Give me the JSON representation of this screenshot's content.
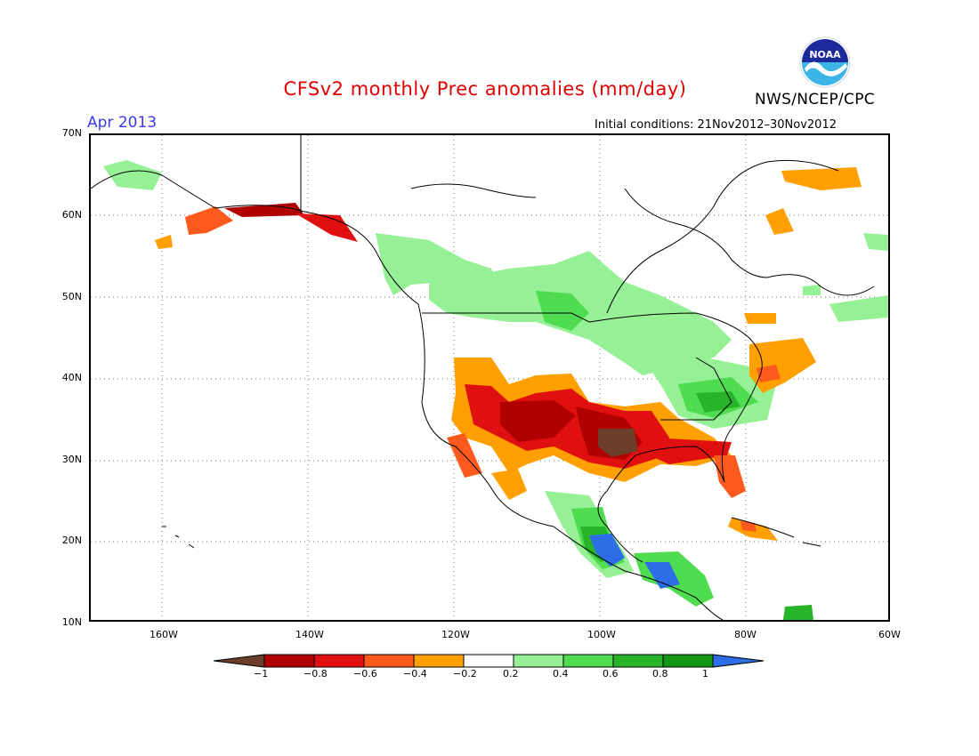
{
  "title": "CFSv2 monthly Prec anomalies (mm/day)",
  "month_label": "Apr 2013",
  "agency": "NWS/NCEP/CPC",
  "initial_conditions": "Initial conditions: 21Nov2012–30Nov2012",
  "logo_text": "NOAA",
  "lat_labels": [
    "70N",
    "60N",
    "50N",
    "40N",
    "30N",
    "20N",
    "10N"
  ],
  "lon_labels": [
    "160W",
    "140W",
    "120W",
    "100W",
    "80W",
    "60W"
  ],
  "colorbar": {
    "labels": [
      "−1",
      "−0.8",
      "−0.6",
      "−0.4",
      "−0.2",
      "0.2",
      "0.4",
      "0.6",
      "0.8",
      "1"
    ],
    "colors": [
      "#6b3f2a",
      "#b00000",
      "#e01010",
      "#ff5a1e",
      "#ffa000",
      "#ffffff",
      "#96f096",
      "#50dc50",
      "#28b428",
      "#149614",
      "#2d6ee6"
    ]
  },
  "colors": {
    "title": "#e00000",
    "month": "#3a3af0",
    "map_border": "#000000"
  }
}
